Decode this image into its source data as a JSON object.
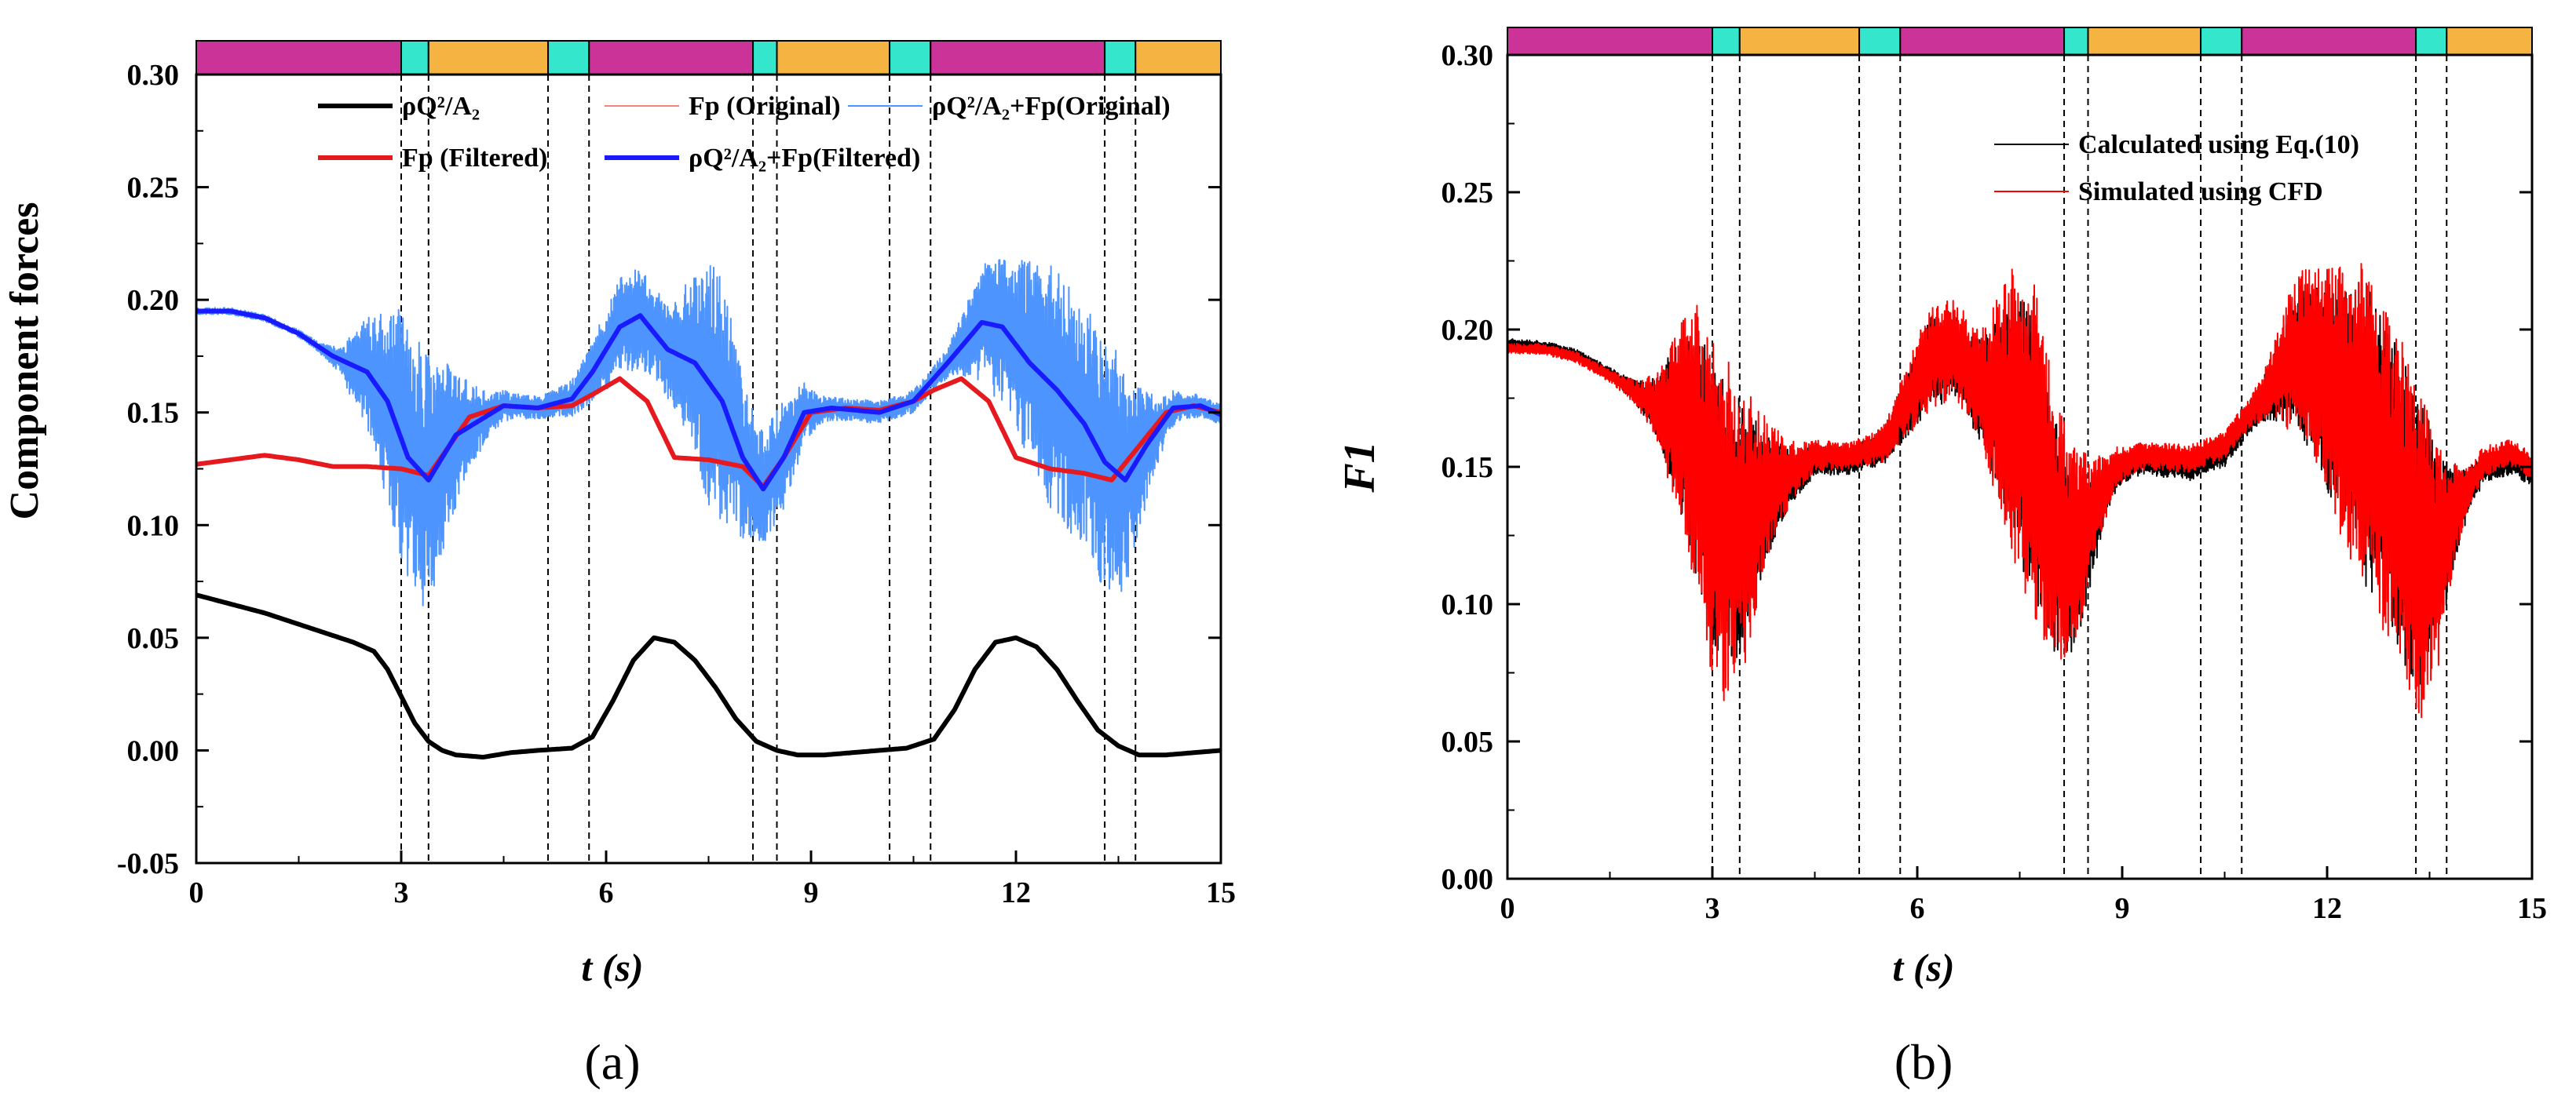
{
  "colors": {
    "magenta": "#cc3399",
    "cyan": "#33e6cc",
    "orange": "#f5b342",
    "black": "#000000",
    "light_red": "#f48080",
    "light_blue": "#4d94ff",
    "red": "#e6191e",
    "blue": "#1a1aff",
    "cfd_red": "#ff0000"
  },
  "phase_bar": [
    {
      "start": 0,
      "end": 3.0,
      "color": "magenta"
    },
    {
      "start": 3.0,
      "end": 3.4,
      "color": "cyan"
    },
    {
      "start": 3.4,
      "end": 5.15,
      "color": "orange"
    },
    {
      "start": 5.15,
      "end": 5.75,
      "color": "cyan"
    },
    {
      "start": 5.75,
      "end": 8.15,
      "color": "magenta"
    },
    {
      "start": 8.15,
      "end": 8.5,
      "color": "cyan"
    },
    {
      "start": 8.5,
      "end": 10.15,
      "color": "orange"
    },
    {
      "start": 10.15,
      "end": 10.75,
      "color": "cyan"
    },
    {
      "start": 10.75,
      "end": 13.3,
      "color": "magenta"
    },
    {
      "start": 13.3,
      "end": 13.75,
      "color": "cyan"
    },
    {
      "start": 13.75,
      "end": 15,
      "color": "orange"
    }
  ],
  "chart_data": [
    {
      "type": "line",
      "panel_label": "(a)",
      "xlabel": "t (s)",
      "ylabel": "Component forces",
      "xlim": [
        0,
        15
      ],
      "ylim": [
        -0.05,
        0.3
      ],
      "xticks": [
        0,
        3,
        6,
        9,
        12,
        15
      ],
      "xtick_labels": [
        "0",
        "3",
        "6",
        "9",
        "12",
        "15"
      ],
      "yticks": [
        -0.05,
        0.0,
        0.05,
        0.1,
        0.15,
        0.2,
        0.25,
        0.3
      ],
      "ytick_labels": [
        "-0.05",
        "0.00",
        "0.05",
        "0.10",
        "0.15",
        "0.20",
        "0.25",
        "0.30"
      ],
      "vlines": [
        3.0,
        3.4,
        5.15,
        5.75,
        8.15,
        8.5,
        10.15,
        10.75,
        13.3,
        13.75
      ],
      "legend": [
        {
          "label": "ρQ²/A₂",
          "color": "black",
          "width": 6
        },
        {
          "label": "Fp (Original)",
          "color": "light_red",
          "width": 2
        },
        {
          "label": "ρQ²/A₂+Fp(Original)",
          "color": "light_blue",
          "width": 2
        },
        {
          "label": "Fp (Filtered)",
          "color": "red",
          "width": 6
        },
        {
          "label": "ρQ²/A₂+Fp(Filtered)",
          "color": "blue",
          "width": 6
        }
      ],
      "series": [
        {
          "name": "ρQ²/A₂",
          "color": "black",
          "width": 6,
          "noise": "none",
          "x": [
            0,
            0.5,
            1,
            1.5,
            2,
            2.3,
            2.6,
            2.8,
            3.0,
            3.2,
            3.4,
            3.6,
            3.8,
            4.2,
            4.6,
            5.0,
            5.5,
            5.8,
            6.1,
            6.4,
            6.7,
            7.0,
            7.3,
            7.6,
            7.9,
            8.2,
            8.5,
            8.8,
            9.2,
            9.6,
            10.0,
            10.4,
            10.8,
            11.1,
            11.4,
            11.7,
            12.0,
            12.3,
            12.6,
            12.9,
            13.2,
            13.5,
            13.8,
            14.2,
            14.6,
            15.0
          ],
          "y": [
            0.069,
            0.065,
            0.061,
            0.056,
            0.051,
            0.048,
            0.044,
            0.036,
            0.024,
            0.012,
            0.004,
            0.0,
            -0.002,
            -0.003,
            -0.001,
            0.0,
            0.001,
            0.006,
            0.022,
            0.04,
            0.05,
            0.048,
            0.04,
            0.028,
            0.014,
            0.004,
            0.0,
            -0.002,
            -0.002,
            -0.001,
            0.0,
            0.001,
            0.005,
            0.018,
            0.036,
            0.048,
            0.05,
            0.046,
            0.036,
            0.022,
            0.009,
            0.002,
            -0.002,
            -0.002,
            -0.001,
            0.0
          ]
        },
        {
          "name": "Fp (Original)",
          "color": "light_red",
          "width": 2,
          "noise": "red",
          "seed": 11,
          "x": [
            0,
            0.5,
            1,
            1.5,
            2,
            2.5,
            3.0,
            3.4,
            4.0,
            4.5,
            5.0,
            5.5,
            5.8,
            6.2,
            6.6,
            7.0,
            7.5,
            8.0,
            8.3,
            8.6,
            9.0,
            9.5,
            10.0,
            10.5,
            10.8,
            11.2,
            11.6,
            12.0,
            12.5,
            13.0,
            13.4,
            13.8,
            14.2,
            14.6,
            15.0
          ],
          "y": [
            0.127,
            0.129,
            0.131,
            0.129,
            0.126,
            0.126,
            0.125,
            0.122,
            0.148,
            0.153,
            0.152,
            0.153,
            0.158,
            0.165,
            0.155,
            0.13,
            0.129,
            0.126,
            0.117,
            0.13,
            0.15,
            0.152,
            0.151,
            0.155,
            0.16,
            0.165,
            0.155,
            0.13,
            0.125,
            0.123,
            0.12,
            0.135,
            0.15,
            0.153,
            0.15
          ]
        },
        {
          "name": "ρQ²/A₂+Fp(Original)",
          "color": "light_blue",
          "width": 2,
          "noise": "blue",
          "seed": 23,
          "x": [
            0,
            0.5,
            1.0,
            1.5,
            2.0,
            2.5,
            2.8,
            3.1,
            3.4,
            3.8,
            4.5,
            5.0,
            5.5,
            5.8,
            6.2,
            6.5,
            6.9,
            7.3,
            7.7,
            8.0,
            8.3,
            8.6,
            8.9,
            9.3,
            10.0,
            10.5,
            11.0,
            11.5,
            11.8,
            12.2,
            12.6,
            13.0,
            13.3,
            13.6,
            13.9,
            14.3,
            14.7,
            15.0
          ],
          "y": [
            0.195,
            0.195,
            0.192,
            0.185,
            0.175,
            0.168,
            0.155,
            0.13,
            0.12,
            0.14,
            0.153,
            0.152,
            0.156,
            0.168,
            0.188,
            0.193,
            0.178,
            0.172,
            0.155,
            0.13,
            0.116,
            0.13,
            0.15,
            0.152,
            0.15,
            0.155,
            0.172,
            0.19,
            0.188,
            0.172,
            0.16,
            0.145,
            0.128,
            0.12,
            0.135,
            0.152,
            0.153,
            0.149
          ]
        },
        {
          "name": "Fp (Filtered)",
          "color": "red",
          "width": 6,
          "noise": "none",
          "x": [
            0,
            0.5,
            1,
            1.5,
            2,
            2.5,
            3.0,
            3.4,
            4.0,
            4.5,
            5.0,
            5.5,
            5.8,
            6.2,
            6.6,
            7.0,
            7.5,
            8.0,
            8.3,
            8.6,
            9.0,
            9.5,
            10.0,
            10.5,
            10.8,
            11.2,
            11.6,
            12.0,
            12.5,
            13.0,
            13.4,
            13.8,
            14.2,
            14.6,
            15.0
          ],
          "y": [
            0.127,
            0.129,
            0.131,
            0.129,
            0.126,
            0.126,
            0.125,
            0.122,
            0.148,
            0.153,
            0.152,
            0.153,
            0.158,
            0.165,
            0.155,
            0.13,
            0.129,
            0.126,
            0.117,
            0.13,
            0.15,
            0.152,
            0.151,
            0.155,
            0.16,
            0.165,
            0.155,
            0.13,
            0.125,
            0.123,
            0.12,
            0.135,
            0.15,
            0.153,
            0.15
          ]
        },
        {
          "name": "ρQ²/A₂+Fp(Filtered)",
          "color": "blue",
          "width": 6,
          "noise": "none",
          "x": [
            0,
            0.5,
            1.0,
            1.5,
            2.0,
            2.5,
            2.8,
            3.1,
            3.4,
            3.8,
            4.5,
            5.0,
            5.5,
            5.8,
            6.2,
            6.5,
            6.9,
            7.3,
            7.7,
            8.0,
            8.3,
            8.6,
            8.9,
            9.3,
            10.0,
            10.5,
            11.0,
            11.5,
            11.8,
            12.2,
            12.6,
            13.0,
            13.3,
            13.6,
            13.9,
            14.3,
            14.7,
            15.0
          ],
          "y": [
            0.195,
            0.195,
            0.192,
            0.185,
            0.175,
            0.168,
            0.155,
            0.13,
            0.12,
            0.14,
            0.153,
            0.152,
            0.156,
            0.168,
            0.188,
            0.193,
            0.178,
            0.172,
            0.155,
            0.13,
            0.116,
            0.13,
            0.15,
            0.152,
            0.15,
            0.155,
            0.172,
            0.19,
            0.188,
            0.172,
            0.16,
            0.145,
            0.128,
            0.12,
            0.135,
            0.152,
            0.153,
            0.149
          ]
        }
      ]
    },
    {
      "type": "line",
      "panel_label": "(b)",
      "xlabel": "t (s)",
      "ylabel": "F1",
      "xlim": [
        0,
        15
      ],
      "ylim": [
        0.0,
        0.3
      ],
      "xticks": [
        0,
        3,
        6,
        9,
        12,
        15
      ],
      "xtick_labels": [
        "0",
        "3",
        "6",
        "9",
        "12",
        "15"
      ],
      "yticks": [
        0.0,
        0.05,
        0.1,
        0.15,
        0.2,
        0.25,
        0.3
      ],
      "ytick_labels": [
        "0.00",
        "0.05",
        "0.10",
        "0.15",
        "0.20",
        "0.25",
        "0.30"
      ],
      "vlines": [
        3.0,
        3.4,
        5.15,
        5.75,
        8.15,
        8.5,
        10.15,
        10.75,
        13.3,
        13.75
      ],
      "legend": [
        {
          "label": "Calculated using Eq.(10)",
          "color": "black",
          "width": 2
        },
        {
          "label": "Simulated using CFD",
          "color": "cfd_red",
          "width": 2
        }
      ],
      "series": [
        {
          "name": "Calculated using Eq.(10)",
          "color": "black",
          "width": 2,
          "noise": "calc",
          "seed": 37,
          "x": [
            0,
            0.5,
            1.0,
            1.5,
            2.0,
            2.5,
            2.8,
            3.1,
            3.4,
            3.8,
            4.5,
            5.0,
            5.5,
            5.8,
            6.2,
            6.5,
            6.9,
            7.3,
            7.7,
            8.0,
            8.3,
            8.6,
            8.9,
            9.3,
            10.0,
            10.5,
            11.0,
            11.5,
            11.8,
            12.2,
            12.6,
            13.0,
            13.3,
            13.6,
            13.9,
            14.3,
            14.7,
            15.0
          ],
          "y": [
            0.195,
            0.194,
            0.191,
            0.184,
            0.175,
            0.166,
            0.152,
            0.13,
            0.128,
            0.14,
            0.152,
            0.152,
            0.157,
            0.17,
            0.188,
            0.192,
            0.178,
            0.17,
            0.155,
            0.125,
            0.115,
            0.13,
            0.148,
            0.152,
            0.15,
            0.155,
            0.172,
            0.188,
            0.186,
            0.172,
            0.16,
            0.142,
            0.125,
            0.118,
            0.134,
            0.15,
            0.152,
            0.148
          ]
        },
        {
          "name": "Simulated using CFD",
          "color": "cfd_red",
          "width": 2,
          "noise": "cfd",
          "seed": 53,
          "x": [
            0,
            0.5,
            1.0,
            1.5,
            2.0,
            2.5,
            2.8,
            3.1,
            3.4,
            3.8,
            4.5,
            5.0,
            5.5,
            5.8,
            6.2,
            6.5,
            6.9,
            7.3,
            7.7,
            8.0,
            8.3,
            8.6,
            8.9,
            9.3,
            10.0,
            10.5,
            11.0,
            11.5,
            11.8,
            12.2,
            12.6,
            13.0,
            13.3,
            13.6,
            13.9,
            14.3,
            14.7,
            15.0
          ],
          "y": [
            0.193,
            0.193,
            0.19,
            0.183,
            0.175,
            0.168,
            0.154,
            0.128,
            0.125,
            0.142,
            0.154,
            0.154,
            0.158,
            0.172,
            0.19,
            0.195,
            0.18,
            0.172,
            0.158,
            0.128,
            0.12,
            0.135,
            0.15,
            0.154,
            0.153,
            0.158,
            0.174,
            0.19,
            0.188,
            0.174,
            0.162,
            0.14,
            0.12,
            0.115,
            0.135,
            0.152,
            0.155,
            0.15
          ]
        }
      ]
    }
  ]
}
